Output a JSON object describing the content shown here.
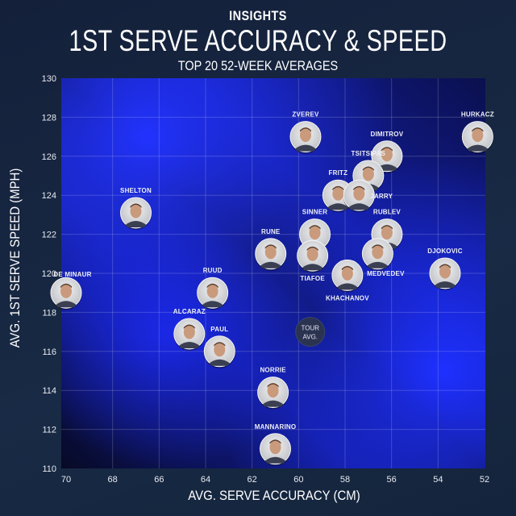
{
  "header": {
    "kicker": "INSIGHTS",
    "title": "1ST SERVE ACCURACY & SPEED",
    "subtitle": "TOP 20 52-WEEK AVERAGES"
  },
  "chart_data": {
    "type": "scatter",
    "title": "1ST SERVE ACCURACY & SPEED",
    "subtitle": "TOP 20 52-WEEK AVERAGES",
    "xlabel": "AVG. SERVE ACCURACY (CM)",
    "ylabel": "AVG. 1ST SERVE SPEED (MPH)",
    "xlim": [
      70,
      52
    ],
    "x_reversed": true,
    "ylim": [
      110,
      130
    ],
    "xticks": [
      "70",
      "68",
      "66",
      "64",
      "62",
      "60",
      "58",
      "56",
      "54",
      "52"
    ],
    "yticks": [
      "110",
      "112",
      "114",
      "116",
      "118",
      "120",
      "122",
      "124",
      "126",
      "128",
      "130"
    ],
    "grid": true,
    "colors": {
      "plot_blue": "#1a2cff",
      "plot_dark": "#0a0e2e",
      "marker": "#d9dadd",
      "tour_avg_marker": "#2a3350"
    },
    "points": [
      {
        "label": "ZVEREV",
        "x": 59.7,
        "y": 127.0
      },
      {
        "label": "HURKACZ",
        "x": 52.3,
        "y": 127.0
      },
      {
        "label": "DIMITROV",
        "x": 56.2,
        "y": 126.0
      },
      {
        "label": "TSITSIPAS",
        "x": 57.0,
        "y": 125.0
      },
      {
        "label": "FRITZ",
        "x": 58.3,
        "y": 124.0
      },
      {
        "label": "JARRY",
        "x": 57.4,
        "y": 124.0
      },
      {
        "label": "SHELTON",
        "x": 67.0,
        "y": 123.1
      },
      {
        "label": "SINNER",
        "x": 59.3,
        "y": 122.0
      },
      {
        "label": "RUBLEV",
        "x": 56.2,
        "y": 122.0
      },
      {
        "label": "RUNE",
        "x": 61.2,
        "y": 121.0
      },
      {
        "label": "TIAFOE",
        "x": 59.4,
        "y": 120.9
      },
      {
        "label": "MEDVEDEV",
        "x": 56.6,
        "y": 121.0
      },
      {
        "label": "DJOKOVIC",
        "x": 53.7,
        "y": 120.0
      },
      {
        "label": "KHACHANOV",
        "x": 57.9,
        "y": 119.9
      },
      {
        "label": "DE MINAUR",
        "x": 70.0,
        "y": 119.0
      },
      {
        "label": "RUUD",
        "x": 63.7,
        "y": 119.0
      },
      {
        "label": "ALCARAZ",
        "x": 64.7,
        "y": 116.9
      },
      {
        "label": "PAUL",
        "x": 63.4,
        "y": 116.0
      },
      {
        "label": "NORRIE",
        "x": 61.1,
        "y": 113.9
      },
      {
        "label": "MANNARINO",
        "x": 61.0,
        "y": 111.0
      }
    ],
    "reference": {
      "label_line1": "TOUR",
      "label_line2": "AVG.",
      "x": 59.5,
      "y": 117.0
    }
  }
}
